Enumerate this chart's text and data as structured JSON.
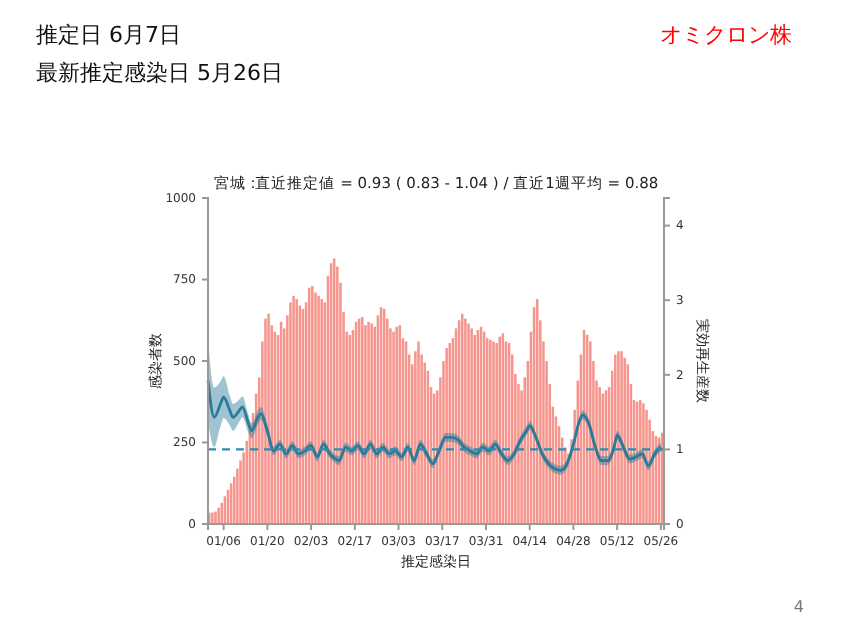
{
  "chart_data": {
    "type": "bar",
    "title": "宮城 :直近推定値 = 0.93 ( 0.83 - 1.04 ) / 直近1週平均 = 0.88",
    "annotations": [
      "推定日  6月7日",
      "最新推定感染日  5月26日",
      "オミクロン株",
      "4"
    ],
    "xlabel": "推定感染日",
    "ylabel": "感染者数",
    "y2label": "実効再生産数",
    "xlim": [
      "--01-01",
      "--05-27"
    ],
    "xticks": [
      {
        "value": "--01-06",
        "label": "01/06"
      },
      {
        "value": "--01-20",
        "label": "01/20"
      },
      {
        "value": "--02-03",
        "label": "02/03"
      },
      {
        "value": "--02-17",
        "label": "02/17"
      },
      {
        "value": "--03-03",
        "label": "03/03"
      },
      {
        "value": "--03-17",
        "label": "03/17"
      },
      {
        "value": "--03-31",
        "label": "03/31"
      },
      {
        "value": "--04-14",
        "label": "04/14"
      },
      {
        "value": "--04-28",
        "label": "04/28"
      },
      {
        "value": "--05-12",
        "label": "05/12"
      },
      {
        "value": "--05-26",
        "label": "05/26"
      }
    ],
    "ylim": [
      0,
      1000
    ],
    "yticks": [
      0,
      250,
      500,
      750,
      1000
    ],
    "y2lim": [
      0,
      4.37
    ],
    "y2ticks": [
      0,
      1,
      2,
      3,
      4
    ],
    "marker": "none",
    "ref_lines": [
      {
        "axis": "y2",
        "value": 1,
        "color": "#2b8cb0",
        "line_style": "dashed"
      }
    ],
    "x": [
      "--01-01",
      "--01-02",
      "--01-03",
      "--01-04",
      "--01-05",
      "--01-06",
      "--01-07",
      "--01-08",
      "--01-09",
      "--01-10",
      "--01-11",
      "--01-12",
      "--01-13",
      "--01-14",
      "--01-15",
      "--01-16",
      "--01-17",
      "--01-18",
      "--01-19",
      "--01-20",
      "--01-21",
      "--01-22",
      "--01-23",
      "--01-24",
      "--01-25",
      "--01-26",
      "--01-27",
      "--01-28",
      "--01-29",
      "--01-30",
      "--01-31",
      "--02-01",
      "--02-02",
      "--02-03",
      "--02-04",
      "--02-05",
      "--02-06",
      "--02-07",
      "--02-08",
      "--02-09",
      "--02-10",
      "--02-11",
      "--02-12",
      "--02-13",
      "--02-14",
      "--02-15",
      "--02-16",
      "--02-17",
      "--02-18",
      "--02-19",
      "--02-20",
      "--02-21",
      "--02-22",
      "--02-23",
      "--02-24",
      "--02-25",
      "--02-26",
      "--02-27",
      "--02-28",
      "--03-01",
      "--03-02",
      "--03-03",
      "--03-04",
      "--03-05",
      "--03-06",
      "--03-07",
      "--03-08",
      "--03-09",
      "--03-10",
      "--03-11",
      "--03-12",
      "--03-13",
      "--03-14",
      "--03-15",
      "--03-16",
      "--03-17",
      "--03-18",
      "--03-19",
      "--03-20",
      "--03-21",
      "--03-22",
      "--03-23",
      "--03-24",
      "--03-25",
      "--03-26",
      "--03-27",
      "--03-28",
      "--03-29",
      "--03-30",
      "--03-31",
      "--04-01",
      "--04-02",
      "--04-03",
      "--04-04",
      "--04-05",
      "--04-06",
      "--04-07",
      "--04-08",
      "--04-09",
      "--04-10",
      "--04-11",
      "--04-12",
      "--04-13",
      "--04-14",
      "--04-15",
      "--04-16",
      "--04-17",
      "--04-18",
      "--04-19",
      "--04-20",
      "--04-21",
      "--04-22",
      "--04-23",
      "--04-24",
      "--04-25",
      "--04-26",
      "--04-27",
      "--04-28",
      "--04-29",
      "--04-30",
      "--05-01",
      "--05-02",
      "--05-03",
      "--05-04",
      "--05-05",
      "--05-06",
      "--05-07",
      "--05-08",
      "--05-09",
      "--05-10",
      "--05-11",
      "--05-12",
      "--05-13",
      "--05-14",
      "--05-15",
      "--05-16",
      "--05-17",
      "--05-18",
      "--05-19",
      "--05-20",
      "--05-21",
      "--05-22",
      "--05-23",
      "--05-24",
      "--05-25",
      "--05-26"
    ],
    "series": [
      {
        "color": "#f6958d",
        "values": [
          35,
          35,
          38,
          50,
          65,
          85,
          105,
          125,
          145,
          170,
          195,
          220,
          255,
          300,
          340,
          400,
          450,
          560,
          630,
          645,
          610,
          590,
          580,
          620,
          600,
          640,
          680,
          700,
          690,
          670,
          660,
          680,
          725,
          730,
          710,
          700,
          690,
          680,
          760,
          800,
          815,
          790,
          740,
          650,
          590,
          580,
          595,
          620,
          630,
          635,
          610,
          620,
          615,
          605,
          640,
          665,
          660,
          630,
          600,
          590,
          605,
          610,
          570,
          560,
          520,
          490,
          530,
          560,
          520,
          495,
          470,
          420,
          400,
          410,
          450,
          500,
          540,
          555,
          570,
          600,
          625,
          645,
          630,
          615,
          600,
          580,
          595,
          605,
          590,
          570,
          565,
          560,
          555,
          575,
          585,
          560,
          555,
          520,
          460,
          430,
          410,
          450,
          500,
          590,
          665,
          690,
          625,
          560,
          500,
          430,
          360,
          330,
          300,
          265,
          235,
          215,
          260,
          350,
          440,
          520,
          595,
          580,
          560,
          500,
          440,
          420,
          400,
          410,
          420,
          470,
          520,
          530,
          530,
          510,
          490,
          430,
          380,
          375,
          380,
          370,
          350,
          320,
          285,
          270,
          265,
          280
        ]
      },
      {
        "type": "line",
        "axis": "y2",
        "color": "#2b7a99",
        "x": [
          "--01-01",
          "--01-03",
          "--01-05",
          "--01-06",
          "--01-08",
          "--01-09",
          "--01-11",
          "--01-12",
          "--01-14",
          "--01-15",
          "--01-17",
          "--01-18",
          "--01-20",
          "--01-22",
          "--01-24",
          "--01-26",
          "--01-28",
          "--01-30",
          "--02-01",
          "--02-03",
          "--02-05",
          "--02-07",
          "--02-09",
          "--02-10",
          "--02-12",
          "--02-14",
          "--02-16",
          "--02-18",
          "--02-20",
          "--02-22",
          "--02-24",
          "--02-26",
          "--02-28",
          "--03-02",
          "--03-04",
          "--03-06",
          "--03-08",
          "--03-10",
          "--03-12",
          "--03-14",
          "--03-16",
          "--03-18",
          "--03-20",
          "--03-22",
          "--03-24",
          "--03-26",
          "--03-28",
          "--03-30",
          "--04-01",
          "--04-03",
          "--04-05",
          "--04-07",
          "--04-09",
          "--04-11",
          "--04-13",
          "--04-14",
          "--04-16",
          "--04-18",
          "--04-20",
          "--04-22",
          "--04-24",
          "--04-26",
          "--04-28",
          "--04-30",
          "--05-01",
          "--05-03",
          "--05-05",
          "--05-07",
          "--05-09",
          "--05-11",
          "--05-12",
          "--05-14",
          "--05-16",
          "--05-18",
          "--05-20",
          "--05-22",
          "--05-24",
          "--05-26"
        ],
        "values": [
          1.92,
          1.43,
          1.61,
          1.7,
          1.52,
          1.43,
          1.52,
          1.57,
          1.34,
          1.25,
          1.43,
          1.48,
          1.25,
          0.98,
          1.07,
          0.94,
          1.05,
          0.94,
          0.98,
          1.05,
          0.9,
          1.07,
          0.94,
          0.9,
          0.85,
          1.03,
          0.98,
          1.05,
          0.94,
          1.07,
          0.94,
          1.03,
          0.94,
          0.98,
          0.9,
          1.03,
          0.85,
          1.07,
          0.94,
          0.81,
          0.98,
          1.16,
          1.16,
          1.13,
          1.03,
          0.98,
          0.94,
          1.03,
          0.98,
          1.07,
          0.94,
          0.85,
          0.94,
          1.12,
          1.25,
          1.32,
          1.16,
          0.94,
          0.81,
          0.74,
          0.72,
          0.81,
          1.07,
          1.39,
          1.46,
          1.34,
          1.03,
          0.85,
          0.85,
          1.03,
          1.19,
          1.03,
          0.87,
          0.9,
          0.94,
          0.78,
          0.94,
          1.03
        ],
        "lower": [
          1.37,
          1.03,
          1.31,
          1.42,
          1.32,
          1.25,
          1.37,
          1.43,
          1.22,
          1.15,
          1.33,
          1.39,
          1.17,
          0.92,
          1.01,
          0.88,
          0.99,
          0.88,
          0.92,
          0.99,
          0.84,
          1.01,
          0.88,
          0.84,
          0.79,
          0.97,
          0.92,
          0.99,
          0.88,
          1.01,
          0.88,
          0.97,
          0.88,
          0.92,
          0.84,
          0.97,
          0.79,
          1.01,
          0.88,
          0.75,
          0.92,
          1.1,
          1.1,
          1.07,
          0.97,
          0.92,
          0.88,
          0.97,
          0.92,
          1.01,
          0.88,
          0.79,
          0.88,
          1.06,
          1.19,
          1.26,
          1.1,
          0.88,
          0.75,
          0.68,
          0.66,
          0.75,
          1.01,
          1.33,
          1.4,
          1.28,
          0.97,
          0.79,
          0.79,
          0.97,
          1.13,
          0.97,
          0.81,
          0.84,
          0.88,
          0.72,
          0.88,
          0.97
        ],
        "upper": [
          2.47,
          1.83,
          1.91,
          1.98,
          1.72,
          1.61,
          1.67,
          1.71,
          1.46,
          1.35,
          1.53,
          1.57,
          1.33,
          1.04,
          1.13,
          1.0,
          1.11,
          1.0,
          1.04,
          1.11,
          0.96,
          1.13,
          1.0,
          0.96,
          0.91,
          1.09,
          1.04,
          1.11,
          1.0,
          1.13,
          1.0,
          1.09,
          1.0,
          1.04,
          0.96,
          1.09,
          0.91,
          1.13,
          1.0,
          0.87,
          1.04,
          1.22,
          1.22,
          1.19,
          1.09,
          1.04,
          1.0,
          1.09,
          1.04,
          1.13,
          1.0,
          0.91,
          1.0,
          1.18,
          1.31,
          1.38,
          1.22,
          1.0,
          0.87,
          0.8,
          0.78,
          0.87,
          1.13,
          1.45,
          1.52,
          1.4,
          1.09,
          0.91,
          0.91,
          1.09,
          1.25,
          1.09,
          0.93,
          0.96,
          1.0,
          0.84,
          1.0,
          1.09
        ]
      }
    ]
  }
}
